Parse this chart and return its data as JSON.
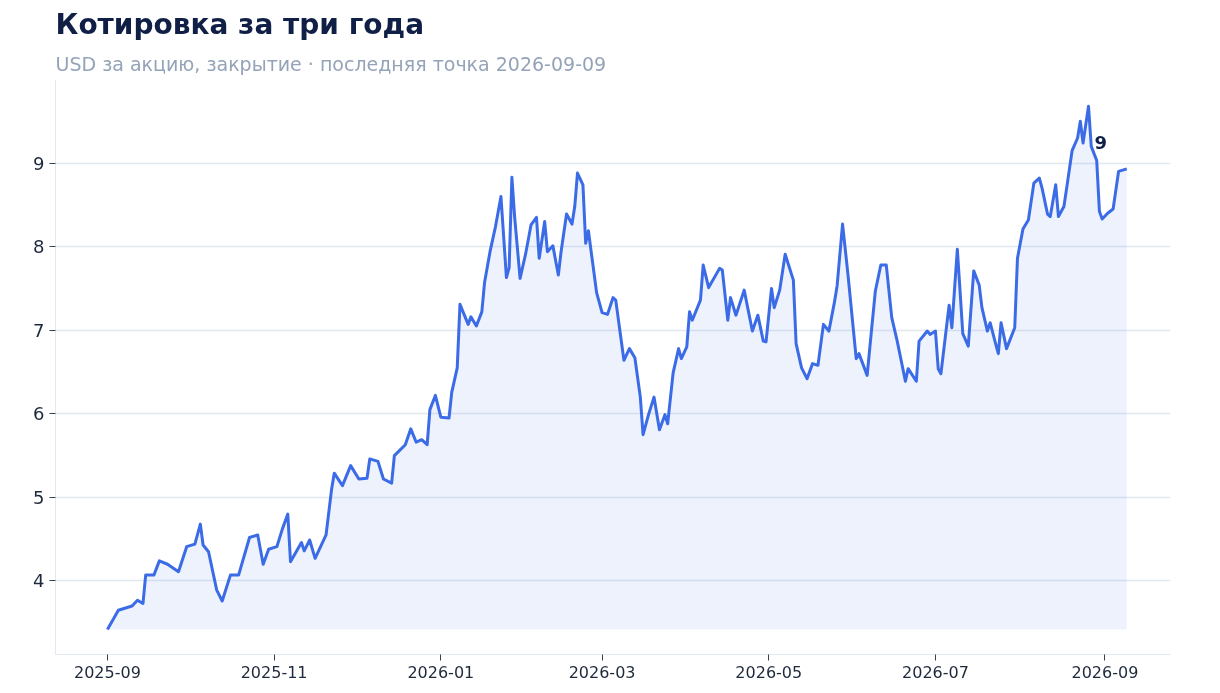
{
  "chart_data": {
    "type": "area",
    "title": "Котировка за три года",
    "subtitle": "USD за акцию, закрытие · последняя точка 2026-09-09",
    "x": [
      "2025-09-01",
      "2025-09-05",
      "2025-09-10",
      "2025-09-12",
      "2025-09-14",
      "2025-09-15",
      "2025-09-18",
      "2025-09-20",
      "2025-09-23",
      "2025-09-27",
      "2025-09-30",
      "2025-10-03",
      "2025-10-05",
      "2025-10-06",
      "2025-10-08",
      "2025-10-11",
      "2025-10-13",
      "2025-10-16",
      "2025-10-19",
      "2025-10-23",
      "2025-10-26",
      "2025-10-28",
      "2025-10-30",
      "2025-11-02",
      "2025-11-04",
      "2025-11-06",
      "2025-11-07",
      "2025-11-11",
      "2025-11-12",
      "2025-11-14",
      "2025-11-16",
      "2025-11-20",
      "2025-11-22",
      "2025-11-23",
      "2025-11-26",
      "2025-11-29",
      "2025-12-02",
      "2025-12-05",
      "2025-12-06",
      "2025-12-09",
      "2025-12-11",
      "2025-12-14",
      "2025-12-15",
      "2025-12-19",
      "2025-12-21",
      "2025-12-23",
      "2025-12-25",
      "2025-12-27",
      "2025-12-28",
      "2025-12-30",
      "2026-01-01",
      "2026-01-04",
      "2026-01-05",
      "2026-01-07",
      "2026-01-08",
      "2026-01-11",
      "2026-01-12",
      "2026-01-14",
      "2026-01-16",
      "2026-01-17",
      "2026-01-19",
      "2026-01-21",
      "2026-01-23",
      "2026-01-25",
      "2026-01-26",
      "2026-01-27",
      "2026-01-28",
      "2026-01-30",
      "2026-02-01",
      "2026-02-03",
      "2026-02-05",
      "2026-02-06",
      "2026-02-08",
      "2026-02-09",
      "2026-02-11",
      "2026-02-13",
      "2026-02-14",
      "2026-02-16",
      "2026-02-18",
      "2026-02-19",
      "2026-02-20",
      "2026-02-22",
      "2026-02-23",
      "2026-02-24",
      "2026-02-27",
      "2026-03-01",
      "2026-03-03",
      "2026-03-05",
      "2026-03-06",
      "2026-03-09",
      "2026-03-11",
      "2026-03-13",
      "2026-03-15",
      "2026-03-16",
      "2026-03-18",
      "2026-03-20",
      "2026-03-22",
      "2026-03-24",
      "2026-03-25",
      "2026-03-27",
      "2026-03-29",
      "2026-03-30",
      "2026-04-01",
      "2026-04-02",
      "2026-04-03",
      "2026-04-06",
      "2026-04-07",
      "2026-04-09",
      "2026-04-13",
      "2026-04-14",
      "2026-04-16",
      "2026-04-17",
      "2026-04-19",
      "2026-04-22",
      "2026-04-25",
      "2026-04-27",
      "2026-04-29",
      "2026-04-30",
      "2026-05-02",
      "2026-05-03",
      "2026-05-05",
      "2026-05-07",
      "2026-05-10",
      "2026-05-11",
      "2026-05-13",
      "2026-05-15",
      "2026-05-17",
      "2026-05-19",
      "2026-05-21",
      "2026-05-23",
      "2026-05-25",
      "2026-05-26",
      "2026-05-28",
      "2026-05-30",
      "2026-06-02",
      "2026-06-03",
      "2026-06-06",
      "2026-06-07",
      "2026-06-09",
      "2026-06-11",
      "2026-06-13",
      "2026-06-15",
      "2026-06-17",
      "2026-06-20",
      "2026-06-21",
      "2026-06-24",
      "2026-06-25",
      "2026-06-28",
      "2026-06-29",
      "2026-07-01",
      "2026-07-02",
      "2026-07-03",
      "2026-07-05",
      "2026-07-06",
      "2026-07-07",
      "2026-07-09",
      "2026-07-11",
      "2026-07-13",
      "2026-07-15",
      "2026-07-17",
      "2026-07-18",
      "2026-07-20",
      "2026-07-21",
      "2026-07-23",
      "2026-07-24",
      "2026-07-25",
      "2026-07-27",
      "2026-07-30",
      "2026-07-31",
      "2026-08-02",
      "2026-08-04",
      "2026-08-06",
      "2026-08-08",
      "2026-08-09",
      "2026-08-11",
      "2026-08-12",
      "2026-08-14",
      "2026-08-15",
      "2026-08-17",
      "2026-08-18",
      "2026-08-20",
      "2026-08-22",
      "2026-08-23",
      "2026-08-24",
      "2026-08-26",
      "2026-08-27",
      "2026-08-29",
      "2026-08-30",
      "2026-08-31",
      "2026-09-02",
      "2026-09-04",
      "2026-09-06",
      "2026-09-09"
    ],
    "values": [
      3.42,
      3.65,
      3.7,
      3.77,
      3.73,
      4.07,
      4.07,
      4.24,
      4.2,
      4.11,
      4.41,
      4.44,
      4.68,
      4.43,
      4.35,
      3.89,
      3.76,
      4.07,
      4.07,
      4.52,
      4.55,
      4.2,
      4.38,
      4.41,
      4.62,
      4.8,
      4.23,
      4.46,
      4.36,
      4.49,
      4.27,
      4.55,
      5.09,
      5.29,
      5.14,
      5.38,
      5.22,
      5.23,
      5.46,
      5.43,
      5.22,
      5.17,
      5.5,
      5.63,
      5.82,
      5.66,
      5.69,
      5.63,
      6.05,
      6.22,
      5.96,
      5.95,
      6.26,
      6.55,
      7.31,
      7.07,
      7.16,
      7.05,
      7.22,
      7.57,
      7.94,
      8.24,
      8.6,
      7.63,
      7.75,
      8.83,
      8.36,
      7.62,
      7.91,
      8.26,
      8.35,
      7.86,
      8.3,
      7.94,
      8.01,
      7.66,
      7.94,
      8.39,
      8.27,
      8.48,
      8.88,
      8.74,
      8.04,
      8.19,
      7.45,
      7.21,
      7.19,
      7.39,
      7.36,
      6.64,
      6.78,
      6.67,
      6.2,
      5.75,
      5.99,
      6.2,
      5.81,
      5.99,
      5.88,
      6.49,
      6.78,
      6.66,
      6.8,
      7.22,
      7.12,
      7.36,
      7.78,
      7.51,
      7.74,
      7.72,
      7.12,
      7.39,
      7.18,
      7.48,
      6.99,
      7.18,
      6.87,
      6.86,
      7.5,
      7.27,
      7.48,
      7.91,
      7.6,
      6.84,
      6.55,
      6.42,
      6.6,
      6.58,
      7.07,
      6.99,
      7.33,
      7.53,
      8.27,
      7.66,
      6.66,
      6.72,
      6.46,
      6.8,
      7.47,
      7.78,
      7.78,
      7.15,
      6.87,
      6.39,
      6.54,
      6.39,
      6.87,
      6.99,
      6.95,
      6.99,
      6.54,
      6.48,
      7.03,
      7.3,
      7.03,
      7.97,
      6.96,
      6.81,
      7.71,
      7.54,
      7.27,
      6.99,
      7.09,
      6.84,
      6.72,
      7.09,
      6.78,
      7.03,
      7.86,
      8.21,
      8.32,
      8.76,
      8.82,
      8.7,
      8.39,
      8.36,
      8.74,
      8.36,
      8.48,
      8.7,
      9.15,
      9.3,
      9.5,
      9.24,
      9.68,
      9.2,
      9.03,
      8.42,
      8.33,
      8.4,
      8.45,
      8.9,
      8.93
    ],
    "color": "#3b6be6",
    "annotations": [
      {
        "text": "9",
        "x": "2026-09-09",
        "y": 8.93
      }
    ],
    "xlim": [
      "2025-08-13",
      "2026-09-25"
    ],
    "ylim": [
      3.12,
      10.0
    ],
    "xticks": [
      "2025-09",
      "2025-11",
      "2026-01",
      "2026-03",
      "2026-05",
      "2026-07",
      "2026-09"
    ],
    "yticks": [
      4,
      5,
      6,
      7,
      8,
      9
    ],
    "grid": "y",
    "line_style": "solid"
  }
}
